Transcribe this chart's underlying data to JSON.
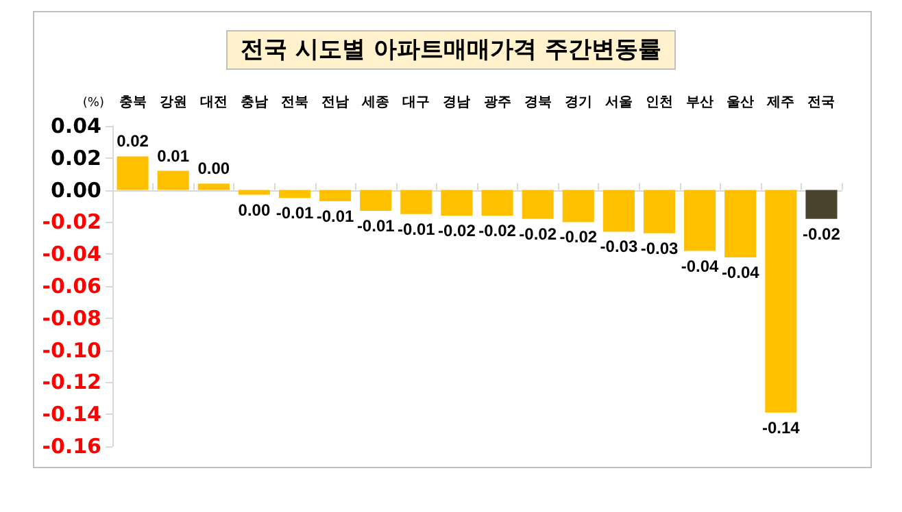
{
  "chart_data": {
    "type": "bar",
    "title": "전국 시도별 아파트매매가격 주간변동률",
    "ylabel": "(%)",
    "categories": [
      "충북",
      "강원",
      "대전",
      "충남",
      "전북",
      "전남",
      "세종",
      "대구",
      "경남",
      "광주",
      "경북",
      "경기",
      "서울",
      "인천",
      "부산",
      "울산",
      "제주",
      "전국"
    ],
    "values": [
      0.021,
      0.012,
      0.004,
      -0.003,
      -0.005,
      -0.007,
      -0.013,
      -0.015,
      -0.016,
      -0.016,
      -0.018,
      -0.02,
      -0.026,
      -0.027,
      -0.038,
      -0.042,
      -0.139,
      -0.018
    ],
    "colors": [
      "#ffc000",
      "#ffc000",
      "#ffc000",
      "#ffc000",
      "#ffc000",
      "#ffc000",
      "#ffc000",
      "#ffc000",
      "#ffc000",
      "#ffc000",
      "#ffc000",
      "#ffc000",
      "#ffc000",
      "#ffc000",
      "#ffc000",
      "#ffc000",
      "#ffc000",
      "#4a432d"
    ],
    "value_labels": [
      "0.02",
      "0.01",
      "0.00",
      "0.00",
      "-0.01",
      "-0.01",
      "-0.01",
      "-0.01",
      "-0.02",
      "-0.02",
      "-0.02",
      "-0.02",
      "-0.03",
      "-0.03",
      "-0.04",
      "-0.04",
      "-0.14",
      "-0.02"
    ],
    "ylim": [
      -0.16,
      0.04
    ],
    "yticks": [
      {
        "value": 0.04,
        "label": "0.04"
      },
      {
        "value": 0.02,
        "label": "0.02"
      },
      {
        "value": 0,
        "label": "0.00"
      },
      {
        "value": -0.02,
        "label": "-0.02"
      },
      {
        "value": -0.04,
        "label": "-0.04"
      },
      {
        "value": -0.06,
        "label": "-0.06"
      },
      {
        "value": -0.08,
        "label": "-0.08"
      },
      {
        "value": -0.1,
        "label": "-0.10"
      },
      {
        "value": -0.12,
        "label": "-0.12"
      },
      {
        "value": -0.14,
        "label": "-0.14"
      },
      {
        "value": -0.16,
        "label": "-0.16"
      }
    ],
    "tick_labels": true
  }
}
